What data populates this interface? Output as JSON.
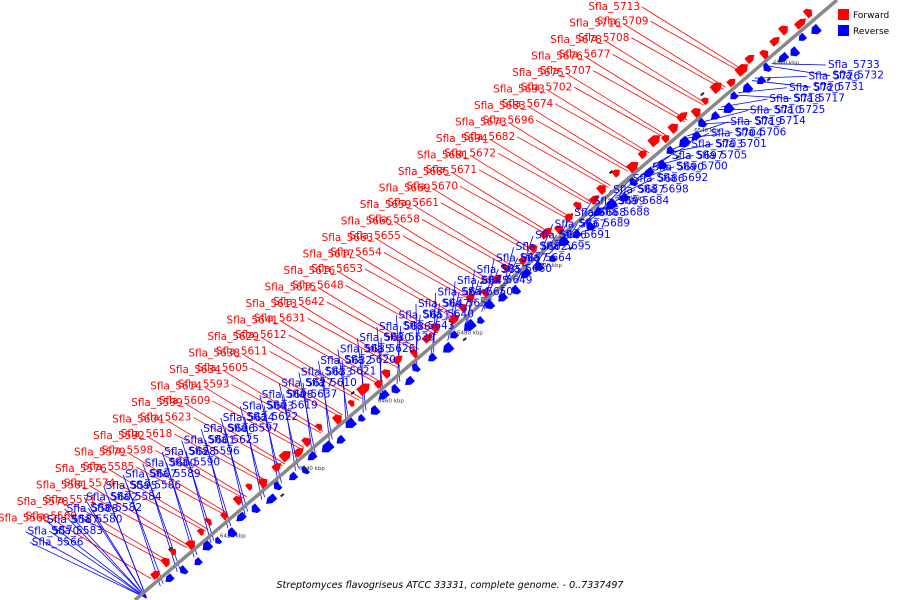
{
  "caption": "Streptomyces flavogriseus ATCC 33331, complete genome. - 0..7337497",
  "legend": [
    {
      "label": "Forward",
      "color": "#ff0000"
    },
    {
      "label": "Reverse",
      "color": "#0000ff"
    }
  ],
  "colors": {
    "forward": "#ff0000",
    "reverse": "#0000ff",
    "backbone": "#888888"
  },
  "ticks": [
    "6420 kbp",
    "6440 kbp",
    "6460 kbp",
    "6480 kbp",
    "6500 kbp",
    "6520 kbp",
    "6540 kbp",
    "6560 kbp"
  ],
  "forward_labels": [
    "Sfla_5713",
    "Sfla_5709",
    "Sfla_5716",
    "Sfla_5708",
    "Sfla_5678",
    "Sfla_5677",
    "Sfla_5676",
    "Sfla_5707",
    "Sfla_5675",
    "Sfla_5702",
    "Sfla_5693",
    "Sfla_5674",
    "Sfla_5683",
    "Sfla_5696",
    "Sfla_5673",
    "Sfla_5682",
    "Sfla_5694",
    "Sfla_5672",
    "Sfla_5681",
    "Sfla_5671",
    "Sfla_5685",
    "Sfla_5670",
    "Sfla_5669",
    "Sfla_5661",
    "Sfla_5659",
    "Sfla_5658",
    "Sfla_5665",
    "Sfla_5655",
    "Sfla_5663",
    "Sfla_5654",
    "Sfla_5617",
    "Sfla_5653",
    "Sfla_5616",
    "Sfla_5648",
    "Sfla_5615",
    "Sfla_5642",
    "Sfla_5613",
    "Sfla_5631",
    "Sfla_5641",
    "Sfla_5612",
    "Sfla_5629",
    "Sfla_5611",
    "Sfla_5638",
    "Sfla_5605",
    "Sfla_5634",
    "Sfla_5593",
    "Sfla_5614",
    "Sfla_5609",
    "Sfla_5599",
    "Sfla_5623",
    "Sfla_5604",
    "Sfla_5618",
    "Sfla_5592",
    "Sfla_5598",
    "Sfla_5579",
    "Sfla_5585",
    "Sfla_5576",
    "Sfla_5574",
    "Sfla_5581",
    "Sfla_5571",
    "Sfla_5578",
    "Sfla_5569",
    "Sfla_5568"
  ],
  "reverse_labels": [
    "Sfla_5733",
    "Sfla_5732",
    "Sfla_5726",
    "Sfla_5731",
    "Sfla_5720",
    "Sfla_5717",
    "Sfla_5718",
    "Sfla_5725",
    "Sfla_5710",
    "Sfla_5714",
    "Sfla_5719",
    "Sfla_5706",
    "Sfla_5704",
    "Sfla_5701",
    "Sfla_5703",
    "Sfla_5705",
    "Sfla_5697",
    "Sfla_5700",
    "Sfla_5690",
    "Sfla_5692",
    "Sfla_5686",
    "Sfla_5698",
    "Sfla_5687",
    "Sfla_5684",
    "Sfla_5699",
    "Sfla_5688",
    "Sfla_5668",
    "Sfla_5689",
    "Sfla_5667",
    "Sfla_5691",
    "Sfla_5666",
    "Sfla_5695",
    "Sfla_5662",
    "Sfla_5664",
    "Sfla_5657",
    "Sfla_5660",
    "Sfla_5652",
    "Sfla_5649",
    "Sfla_5645",
    "Sfla_5650",
    "Sfla_5644",
    "Sfla_5656",
    "Sfla_5647",
    "Sfla_5640",
    "Sfla_5651",
    "Sfla_5643",
    "Sfla_5636",
    "Sfla_5639",
    "Sfla_5630",
    "Sfla_5626",
    "Sfla_5635",
    "Sfla_5620",
    "Sfla_5632",
    "Sfla_5621",
    "Sfla_5633",
    "Sfla_5610",
    "Sfla_5627",
    "Sfla_5637",
    "Sfla_5608",
    "Sfla_5619",
    "Sfla_5603",
    "Sfla_5622",
    "Sfla_5624",
    "Sfla_5597",
    "Sfla_5606",
    "Sfla_5625",
    "Sfla_5601",
    "Sfla_5596",
    "Sfla_5628",
    "Sfla_5590",
    "Sfla_5600",
    "Sfla_5589",
    "Sfla_5607",
    "Sfla_5586",
    "Sfla_5595",
    "Sfla_5584",
    "Sfla_5602",
    "Sfla_5582",
    "Sfla_5588",
    "Sfla_5580",
    "Sfla_5587",
    "Sfla_5583",
    "Sfla_5570",
    "Sfla_5566"
  ]
}
